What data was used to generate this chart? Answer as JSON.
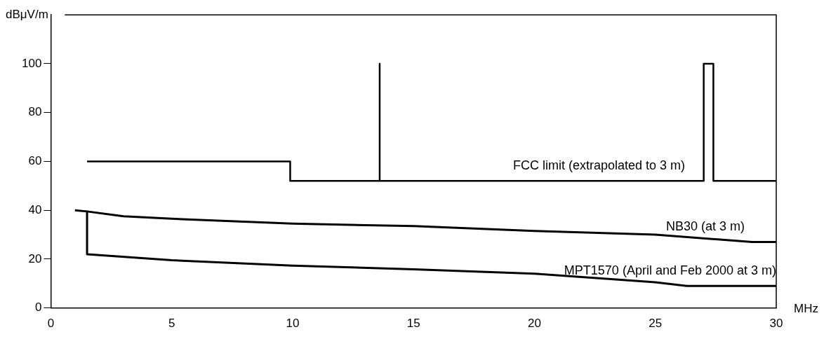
{
  "chart_data": {
    "type": "line",
    "xlabel": "MHz",
    "ylabel": "dBμV/m",
    "xlim": [
      0,
      30
    ],
    "ylim": [
      0,
      120
    ],
    "xticks": [
      0,
      5,
      10,
      15,
      20,
      25,
      30
    ],
    "yticks": [
      0,
      20,
      40,
      60,
      80,
      100
    ],
    "grid": false,
    "legend": false,
    "marker": "none",
    "line_style": "solid",
    "series": [
      {
        "name": "FCC limit (extrapolated to 3 m)",
        "color": "#000000",
        "x": [
          1.5,
          9.9,
          9.9,
          13.6,
          13.6,
          13.6,
          27,
          27,
          27.4,
          27.4,
          30
        ],
        "values": [
          60,
          60,
          52,
          52,
          100,
          52,
          52,
          100,
          100,
          52,
          52
        ]
      },
      {
        "name": "NB30 (at 3 m)",
        "color": "#000000",
        "x": [
          1,
          1.5,
          3,
          5,
          10,
          15,
          20,
          25,
          29,
          30
        ],
        "values": [
          40,
          39.5,
          37.5,
          36.5,
          34.5,
          33.5,
          31.5,
          30,
          27,
          27
        ]
      },
      {
        "name": "MPT1570 (April and Feb 2000 at 3 m)",
        "color": "#000000",
        "x": [
          1.5,
          1.5,
          5,
          10,
          15,
          20,
          25,
          26.3,
          30
        ],
        "values": [
          39.5,
          22,
          19.5,
          17.3,
          15.8,
          14,
          10.5,
          9,
          9
        ]
      }
    ]
  }
}
